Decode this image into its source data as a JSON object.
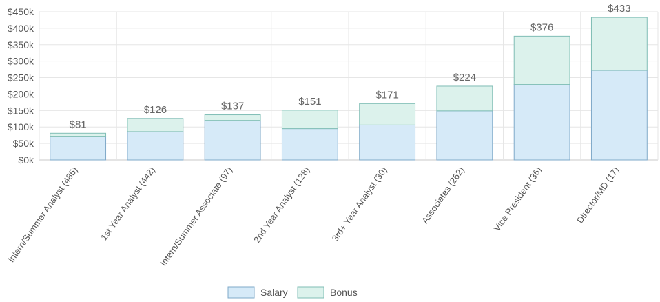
{
  "chart_data": {
    "type": "bar",
    "stacked": true,
    "categories": [
      "Intern/Summer Analyst (485)",
      "1st Year Analyst (442)",
      "Intern/Summer Associate (97)",
      "2nd Year Analyst (128)",
      "3rd+ Year Analyst (30)",
      "Associates (262)",
      "Vice President (36)",
      "Director/MD (17)"
    ],
    "series": [
      {
        "name": "Salary",
        "values": [
          72,
          86,
          120,
          95,
          106,
          149,
          229,
          272
        ]
      },
      {
        "name": "Bonus",
        "values": [
          9,
          40,
          17,
          56,
          65,
          75,
          147,
          161
        ]
      }
    ],
    "totals": [
      81,
      126,
      137,
      151,
      171,
      224,
      376,
      433
    ],
    "total_labels": [
      "$81",
      "$126",
      "$137",
      "$151",
      "$171",
      "$224",
      "$376",
      "$433"
    ],
    "y_ticks": [
      0,
      50,
      100,
      150,
      200,
      250,
      300,
      350,
      400,
      450
    ],
    "y_tick_labels": [
      "$0k",
      "$50k",
      "$100k",
      "$150k",
      "$200k",
      "$250k",
      "$300k",
      "$350k",
      "$400k",
      "$450k"
    ],
    "ylim": [
      0,
      450
    ],
    "grid": true,
    "legend": {
      "placement": "bottom-center",
      "entries": [
        "Salary",
        "Bonus"
      ]
    },
    "colors": {
      "salary_fill": "#d6eaf8",
      "salary_stroke": "#7fa9c9",
      "bonus_fill": "#dcf2ec",
      "bonus_stroke": "#7fbdb5",
      "grid": "#e6e6e6",
      "axis": "#c8c8c8"
    }
  }
}
